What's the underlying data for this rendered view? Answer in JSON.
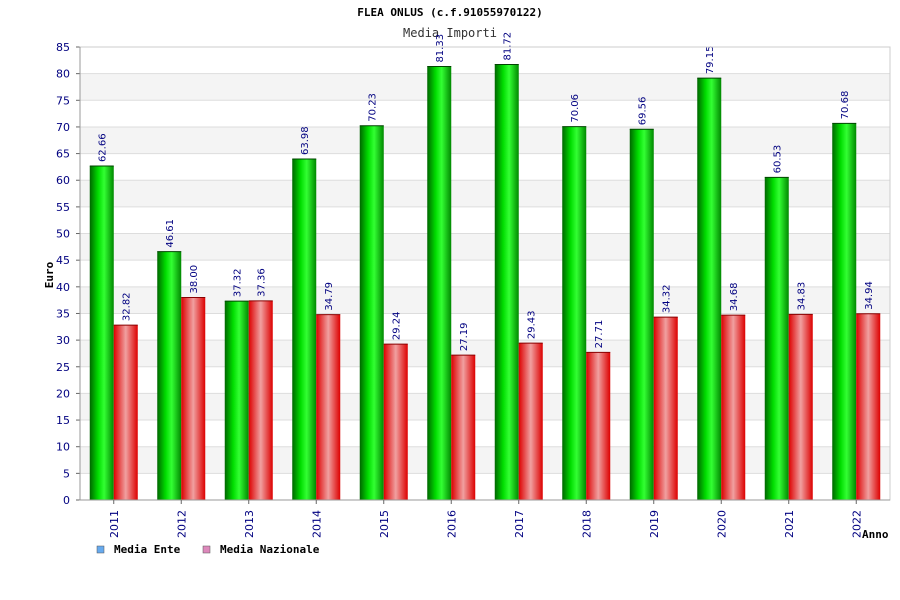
{
  "chart_data": {
    "type": "bar",
    "title": "FLEA ONLUS (c.f.91055970122)",
    "subtitle": "Media Importi",
    "ylabel": "Euro",
    "xlabel": "Anno",
    "ylim": [
      0,
      85
    ],
    "ytick_step": 5,
    "grid": true,
    "legend_position": "bottom-left",
    "categories": [
      "2011",
      "2012",
      "2013",
      "2014",
      "2015",
      "2016",
      "2017",
      "2018",
      "2019",
      "2020",
      "2021",
      "2022"
    ],
    "series": [
      {
        "name": "Media Ente",
        "color": "#00cc00",
        "legend_color": "#66aaee",
        "values": [
          62.66,
          46.61,
          37.32,
          63.98,
          70.23,
          81.33,
          81.72,
          70.06,
          69.56,
          79.15,
          60.53,
          70.68
        ],
        "labels": [
          "62.66",
          "46.61",
          "37.32",
          "63.98",
          "70.23",
          "81.33",
          "81.72",
          "70.06",
          "69.56",
          "79.15",
          "60.53",
          "70.68"
        ]
      },
      {
        "name": "Media Nazionale",
        "color": "#ee0000",
        "legend_color": "#dd88bb",
        "values": [
          32.82,
          38.0,
          37.36,
          34.79,
          29.24,
          27.19,
          29.43,
          27.71,
          34.32,
          34.68,
          34.83,
          34.94
        ],
        "labels": [
          "32.82",
          "38.00",
          "37.36",
          "34.79",
          "29.24",
          "27.19",
          "29.43",
          "27.71",
          "34.32",
          "34.68",
          "34.83",
          "34.94"
        ]
      }
    ]
  }
}
